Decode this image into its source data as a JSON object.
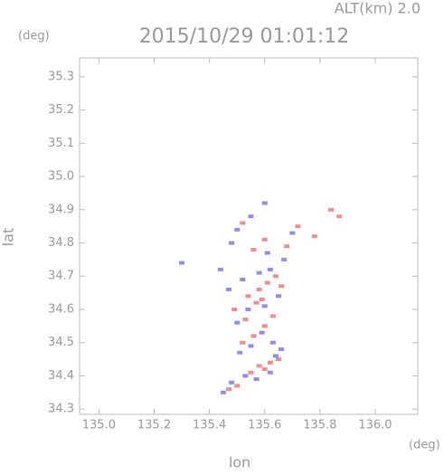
{
  "chart_data": {
    "type": "scatter",
    "title": "2015/10/29 01:01:12",
    "annotation": "ALT(km) 2.0",
    "y_unit": "(deg)",
    "x_unit": "(deg)",
    "xlabel": "lon",
    "ylabel": "lat",
    "xlim": [
      134.93,
      136.154
    ],
    "ylim": [
      34.284,
      35.357
    ],
    "xticks": [
      {
        "value": 135,
        "label": "135.0"
      },
      135.2,
      135.4,
      135.6,
      135.8,
      {
        "value": 136,
        "label": "136.0"
      }
    ],
    "yticks": [
      34.3,
      34.4,
      34.5,
      34.6,
      34.7,
      34.8,
      34.9,
      {
        "value": 35,
        "label": "35.0"
      },
      35.1,
      35.2,
      35.3
    ],
    "series": [
      {
        "color": "#f07070",
        "x": [
          135.47,
          135.5,
          135.55,
          135.58,
          135.6,
          135.62,
          135.65,
          135.52,
          135.56,
          135.6,
          135.63,
          135.57,
          135.54,
          135.58,
          135.61,
          135.66,
          135.49,
          135.53,
          135.59,
          135.64,
          135.72,
          135.78,
          135.84,
          135.87,
          135.56,
          135.6,
          135.52,
          135.68
        ],
        "y": [
          34.36,
          34.37,
          34.41,
          34.43,
          34.42,
          34.44,
          34.45,
          34.5,
          34.52,
          34.55,
          34.58,
          34.62,
          34.64,
          34.66,
          34.68,
          34.67,
          34.6,
          34.57,
          34.63,
          34.7,
          34.85,
          34.82,
          34.9,
          34.88,
          34.78,
          34.81,
          34.86,
          34.79
        ]
      },
      {
        "color": "#7070f0",
        "x": [
          135.45,
          135.48,
          135.53,
          135.57,
          135.62,
          135.64,
          135.51,
          135.55,
          135.59,
          135.63,
          135.66,
          135.5,
          135.54,
          135.6,
          135.65,
          135.47,
          135.52,
          135.58,
          135.62,
          135.3,
          135.44,
          135.5,
          135.6,
          135.7,
          135.55,
          135.48,
          135.67,
          135.61
        ],
        "y": [
          34.35,
          34.38,
          34.4,
          34.39,
          34.41,
          34.46,
          34.47,
          34.49,
          34.53,
          34.5,
          34.48,
          34.56,
          34.6,
          34.61,
          34.64,
          34.66,
          34.69,
          34.71,
          34.72,
          34.74,
          34.72,
          34.84,
          34.92,
          34.83,
          34.88,
          34.8,
          34.75,
          34.77
        ]
      }
    ]
  }
}
